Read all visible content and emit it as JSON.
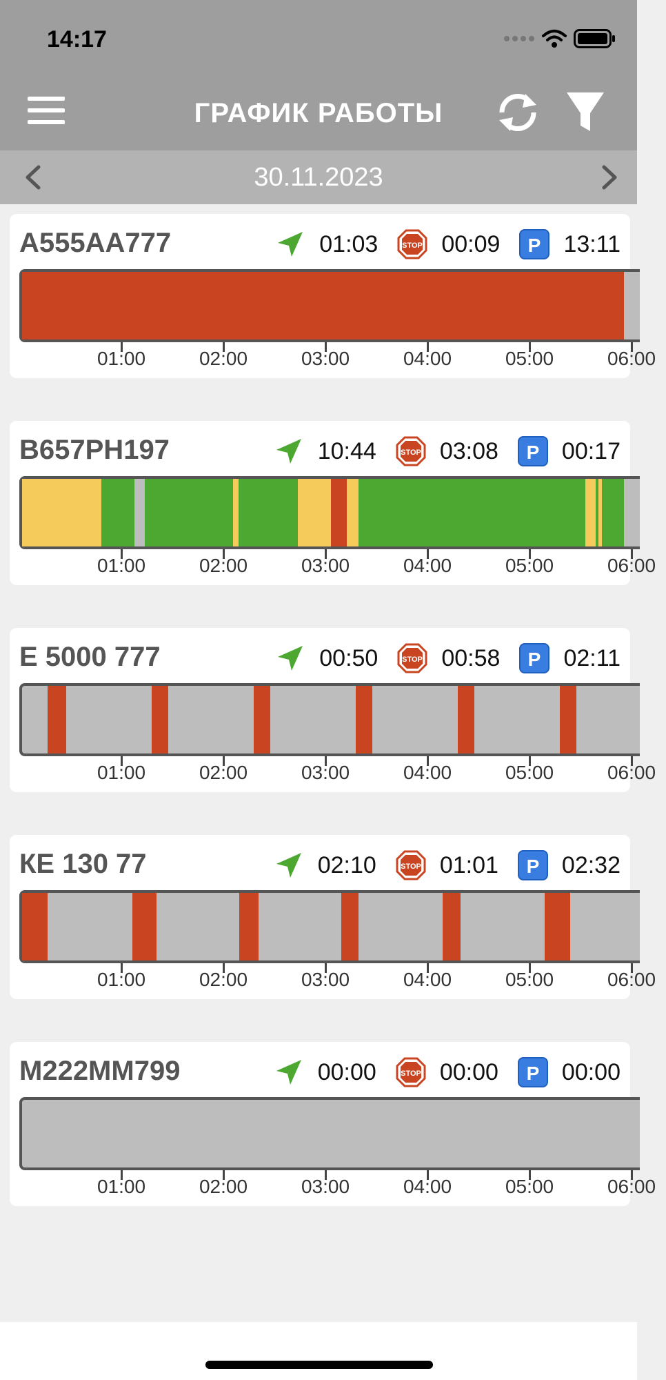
{
  "status_bar": {
    "time": "14:17"
  },
  "header": {
    "title": "ГРАФИК РАБОТЫ"
  },
  "date_nav": {
    "date": "30.11.2023"
  },
  "colors": {
    "driving": "#4ca830",
    "idle": "#f5cc5c",
    "stopped": "#c94521",
    "offline": "#bdbdbd",
    "parking_badge": "#3a7de0",
    "header_bg": "#9e9e9e",
    "date_bar_bg": "#b3b3b3"
  },
  "icons": {
    "menu": "hamburger-menu-icon",
    "refresh": "refresh-icon",
    "filter": "filter-funnel-icon",
    "prev": "chevron-left-icon",
    "next": "chevron-right-icon",
    "movement": "navigation-arrow-icon",
    "stop": "stop-sign-icon",
    "parking": "parking-icon"
  },
  "timeline_ticks": [
    "01:00",
    "02:00",
    "03:00",
    "04:00",
    "05:00",
    "06:00"
  ],
  "vehicles": [
    {
      "plate": "А555АА777",
      "movement_time": "01:03",
      "stop_time": "00:09",
      "parking_time": "13:11",
      "segments": [
        {
          "state": "stopped",
          "from": 0,
          "to": 5.9
        }
      ]
    },
    {
      "plate": "В657РН197",
      "movement_time": "10:44",
      "stop_time": "03:08",
      "parking_time": "00:17",
      "segments": [
        {
          "state": "idle",
          "from": 0,
          "to": 0.78
        },
        {
          "state": "driving",
          "from": 0.78,
          "to": 1.1
        },
        {
          "state": "offline",
          "from": 1.1,
          "to": 1.2
        },
        {
          "state": "driving",
          "from": 1.2,
          "to": 2.07
        },
        {
          "state": "idle",
          "from": 2.07,
          "to": 2.12
        },
        {
          "state": "driving",
          "from": 2.12,
          "to": 2.7
        },
        {
          "state": "idle",
          "from": 2.7,
          "to": 3.03
        },
        {
          "state": "stopped",
          "from": 3.03,
          "to": 3.18
        },
        {
          "state": "idle",
          "from": 3.18,
          "to": 3.3
        },
        {
          "state": "driving",
          "from": 3.3,
          "to": 5.52
        },
        {
          "state": "idle",
          "from": 5.52,
          "to": 5.62
        },
        {
          "state": "driving",
          "from": 5.62,
          "to": 5.65
        },
        {
          "state": "idle",
          "from": 5.65,
          "to": 5.68
        },
        {
          "state": "driving",
          "from": 5.68,
          "to": 5.9
        }
      ]
    },
    {
      "plate": "Е 5000 777",
      "movement_time": "00:50",
      "stop_time": "00:58",
      "parking_time": "02:11",
      "segments": [
        {
          "state": "stopped",
          "from": 0.25,
          "to": 0.43
        },
        {
          "state": "stopped",
          "from": 1.27,
          "to": 1.43
        },
        {
          "state": "stopped",
          "from": 2.27,
          "to": 2.43
        },
        {
          "state": "stopped",
          "from": 3.27,
          "to": 3.43
        },
        {
          "state": "stopped",
          "from": 4.27,
          "to": 4.43
        },
        {
          "state": "stopped",
          "from": 5.27,
          "to": 5.43
        }
      ]
    },
    {
      "plate": "КЕ 130 77",
      "movement_time": "02:10",
      "stop_time": "01:01",
      "parking_time": "02:32",
      "segments": [
        {
          "state": "stopped",
          "from": 0.0,
          "to": 0.25
        },
        {
          "state": "stopped",
          "from": 1.08,
          "to": 1.32
        },
        {
          "state": "stopped",
          "from": 2.13,
          "to": 2.32
        },
        {
          "state": "stopped",
          "from": 3.13,
          "to": 3.3
        },
        {
          "state": "stopped",
          "from": 4.12,
          "to": 4.3
        },
        {
          "state": "stopped",
          "from": 5.12,
          "to": 5.37
        }
      ]
    },
    {
      "plate": "М222ММ799",
      "movement_time": "00:00",
      "stop_time": "00:00",
      "parking_time": "00:00",
      "segments": []
    }
  ]
}
